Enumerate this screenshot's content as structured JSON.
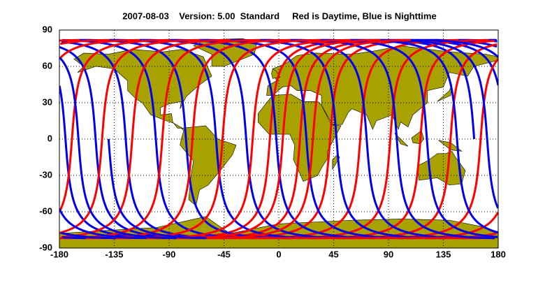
{
  "chart_data": {
    "type": "map",
    "title": "2007-08-03    Version: 5.00  Standard     Red is Daytime, Blue is Nighttime",
    "xlim": [
      -180,
      180
    ],
    "ylim": [
      -90,
      90
    ],
    "xticks": [
      -180,
      -135,
      -90,
      -45,
      0,
      45,
      90,
      135,
      180
    ],
    "yticks": [
      90,
      60,
      30,
      0,
      -30,
      -60,
      -90
    ],
    "grid": true,
    "land_color": "#a8a200",
    "day_color": "#ff0000",
    "night_color": "#0000ee"
  }
}
